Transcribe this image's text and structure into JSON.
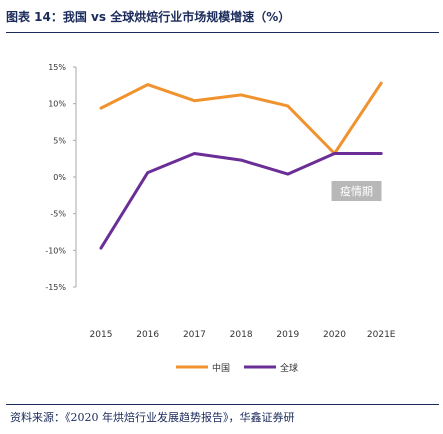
{
  "figure": {
    "title": "图表 14：我国 vs 全球烘焙行业市场规模增速（%）",
    "source": "资料来源：《2020 年烘焙行业发展趋势报告》，华鑫证券研"
  },
  "chart_data": {
    "type": "line",
    "categories": [
      "2015",
      "2016",
      "2017",
      "2018",
      "2019",
      "2020",
      "2021E"
    ],
    "series": [
      {
        "name": "中国",
        "color": "#f0922e",
        "values": [
          9.4,
          12.6,
          10.4,
          11.2,
          9.7,
          3.2,
          12.8
        ]
      },
      {
        "name": "全球",
        "color": "#6a2e96",
        "values": [
          -9.7,
          0.6,
          3.2,
          2.3,
          0.4,
          3.2,
          3.2
        ]
      }
    ],
    "yticks": [
      "15%",
      "10%",
      "5%",
      "0%",
      "-5%",
      "-10%",
      "-15%"
    ],
    "ylim": [
      -15,
      15
    ],
    "grid": false,
    "legend_position": "bottom",
    "annotation": {
      "text": "疫情期",
      "x_index": 5,
      "bg": "#b8b8b8",
      "color": "#ffffff"
    }
  }
}
